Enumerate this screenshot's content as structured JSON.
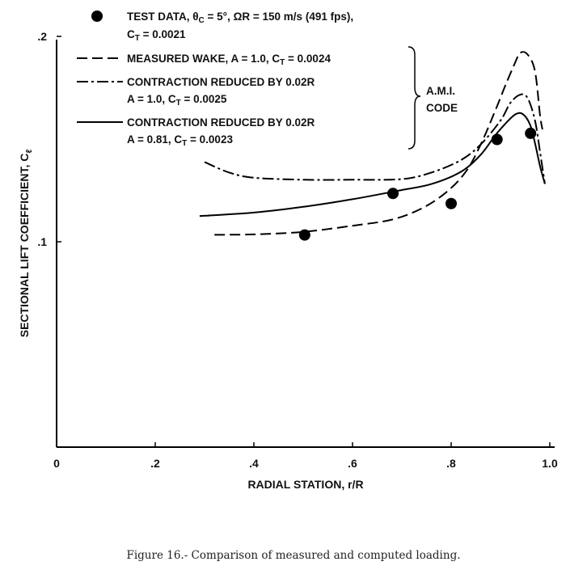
{
  "chart_data": {
    "type": "line",
    "xlabel": "RADIAL STATION, r/R",
    "ylabel": "SECTIONAL LIFT COEFFICIENT, C",
    "ylabel_sub": "ℓ",
    "xlim": [
      0,
      1.0
    ],
    "ylim": [
      0,
      0.2
    ],
    "x_ticks": [
      {
        "value": 0,
        "label": "0"
      },
      {
        "value": 0.2,
        "label": ".2"
      },
      {
        "value": 0.4,
        "label": ".4"
      },
      {
        "value": 0.6,
        "label": ".6"
      },
      {
        "value": 0.8,
        "label": ".8"
      },
      {
        "value": 1.0,
        "label": "1.0"
      }
    ],
    "y_ticks": [
      {
        "value": 0.1,
        "label": ".1"
      },
      {
        "value": 0.2,
        "label": ".2"
      }
    ],
    "grid": false,
    "legend": {
      "position": "top",
      "test_data": {
        "line1_prefix": "TEST DATA, θ",
        "line1_sub": "C",
        "line1_rest": " = 5°, ΩR = 150 m/s (491 fps),",
        "line2_prefix": "C",
        "line2_sub": "T",
        "line2_rest": " = 0.0021"
      },
      "measured_wake": {
        "prefix": "MEASURED WAKE, A = 1.0, C",
        "sub": "T",
        "rest": " = 0.0024"
      },
      "contraction_a": {
        "line1": "CONTRACTION REDUCED BY 0.02R",
        "line2_prefix": "A = 1.0, C",
        "line2_sub": "T",
        "line2_rest": " = 0.0025"
      },
      "contraction_b": {
        "line1": "CONTRACTION REDUCED BY 0.02R",
        "line2_prefix": "A = 0.81, C",
        "line2_sub": "T",
        "line2_rest": " = 0.0023"
      },
      "bracket_label": [
        "A.M.I.",
        "CODE"
      ]
    },
    "test_points": [
      {
        "x": 0.503,
        "y": 0.1033
      },
      {
        "x": 0.682,
        "y": 0.1235
      },
      {
        "x": 0.8,
        "y": 0.1186
      },
      {
        "x": 0.893,
        "y": 0.1498
      },
      {
        "x": 0.961,
        "y": 0.1528
      }
    ],
    "series": [
      {
        "name": "MEASURED WAKE, A = 1.0, CT = 0.0024",
        "style": "dashed",
        "points": [
          [
            0.32,
            0.1034
          ],
          [
            0.4,
            0.1036
          ],
          [
            0.5,
            0.1048
          ],
          [
            0.6,
            0.1078
          ],
          [
            0.68,
            0.1108
          ],
          [
            0.74,
            0.1162
          ],
          [
            0.79,
            0.1241
          ],
          [
            0.83,
            0.1342
          ],
          [
            0.86,
            0.1474
          ],
          [
            0.89,
            0.1642
          ],
          [
            0.91,
            0.1762
          ],
          [
            0.93,
            0.1874
          ],
          [
            0.94,
            0.192
          ],
          [
            0.955,
            0.1912
          ],
          [
            0.97,
            0.183
          ],
          [
            0.98,
            0.162
          ],
          [
            0.985,
            0.1547
          ]
        ]
      },
      {
        "name": "CONTRACTION REDUCED BY 0.02R, A = 1.0, CT = 0.0025",
        "style": "dash-dot",
        "points": [
          [
            0.3,
            0.1388
          ],
          [
            0.35,
            0.1337
          ],
          [
            0.4,
            0.1312
          ],
          [
            0.5,
            0.1302
          ],
          [
            0.6,
            0.1302
          ],
          [
            0.7,
            0.1305
          ],
          [
            0.76,
            0.1337
          ],
          [
            0.82,
            0.1398
          ],
          [
            0.86,
            0.1474
          ],
          [
            0.9,
            0.159
          ],
          [
            0.92,
            0.1676
          ],
          [
            0.94,
            0.1716
          ],
          [
            0.955,
            0.17
          ],
          [
            0.97,
            0.159
          ],
          [
            0.98,
            0.144
          ],
          [
            0.99,
            0.1282
          ]
        ]
      },
      {
        "name": "CONTRACTION REDUCED BY 0.02R, A = 0.81, CT = 0.0023",
        "style": "solid",
        "points": [
          [
            0.29,
            0.1125
          ],
          [
            0.4,
            0.1142
          ],
          [
            0.5,
            0.117
          ],
          [
            0.6,
            0.1207
          ],
          [
            0.7,
            0.1252
          ],
          [
            0.76,
            0.1281
          ],
          [
            0.82,
            0.1341
          ],
          [
            0.86,
            0.1424
          ],
          [
            0.89,
            0.152
          ],
          [
            0.91,
            0.1575
          ],
          [
            0.93,
            0.162
          ],
          [
            0.945,
            0.1622
          ],
          [
            0.96,
            0.157
          ],
          [
            0.97,
            0.148
          ],
          [
            0.98,
            0.137
          ],
          [
            0.99,
            0.1282
          ]
        ]
      }
    ],
    "caption": "Figure 16.- Comparison of measured and computed loading."
  }
}
